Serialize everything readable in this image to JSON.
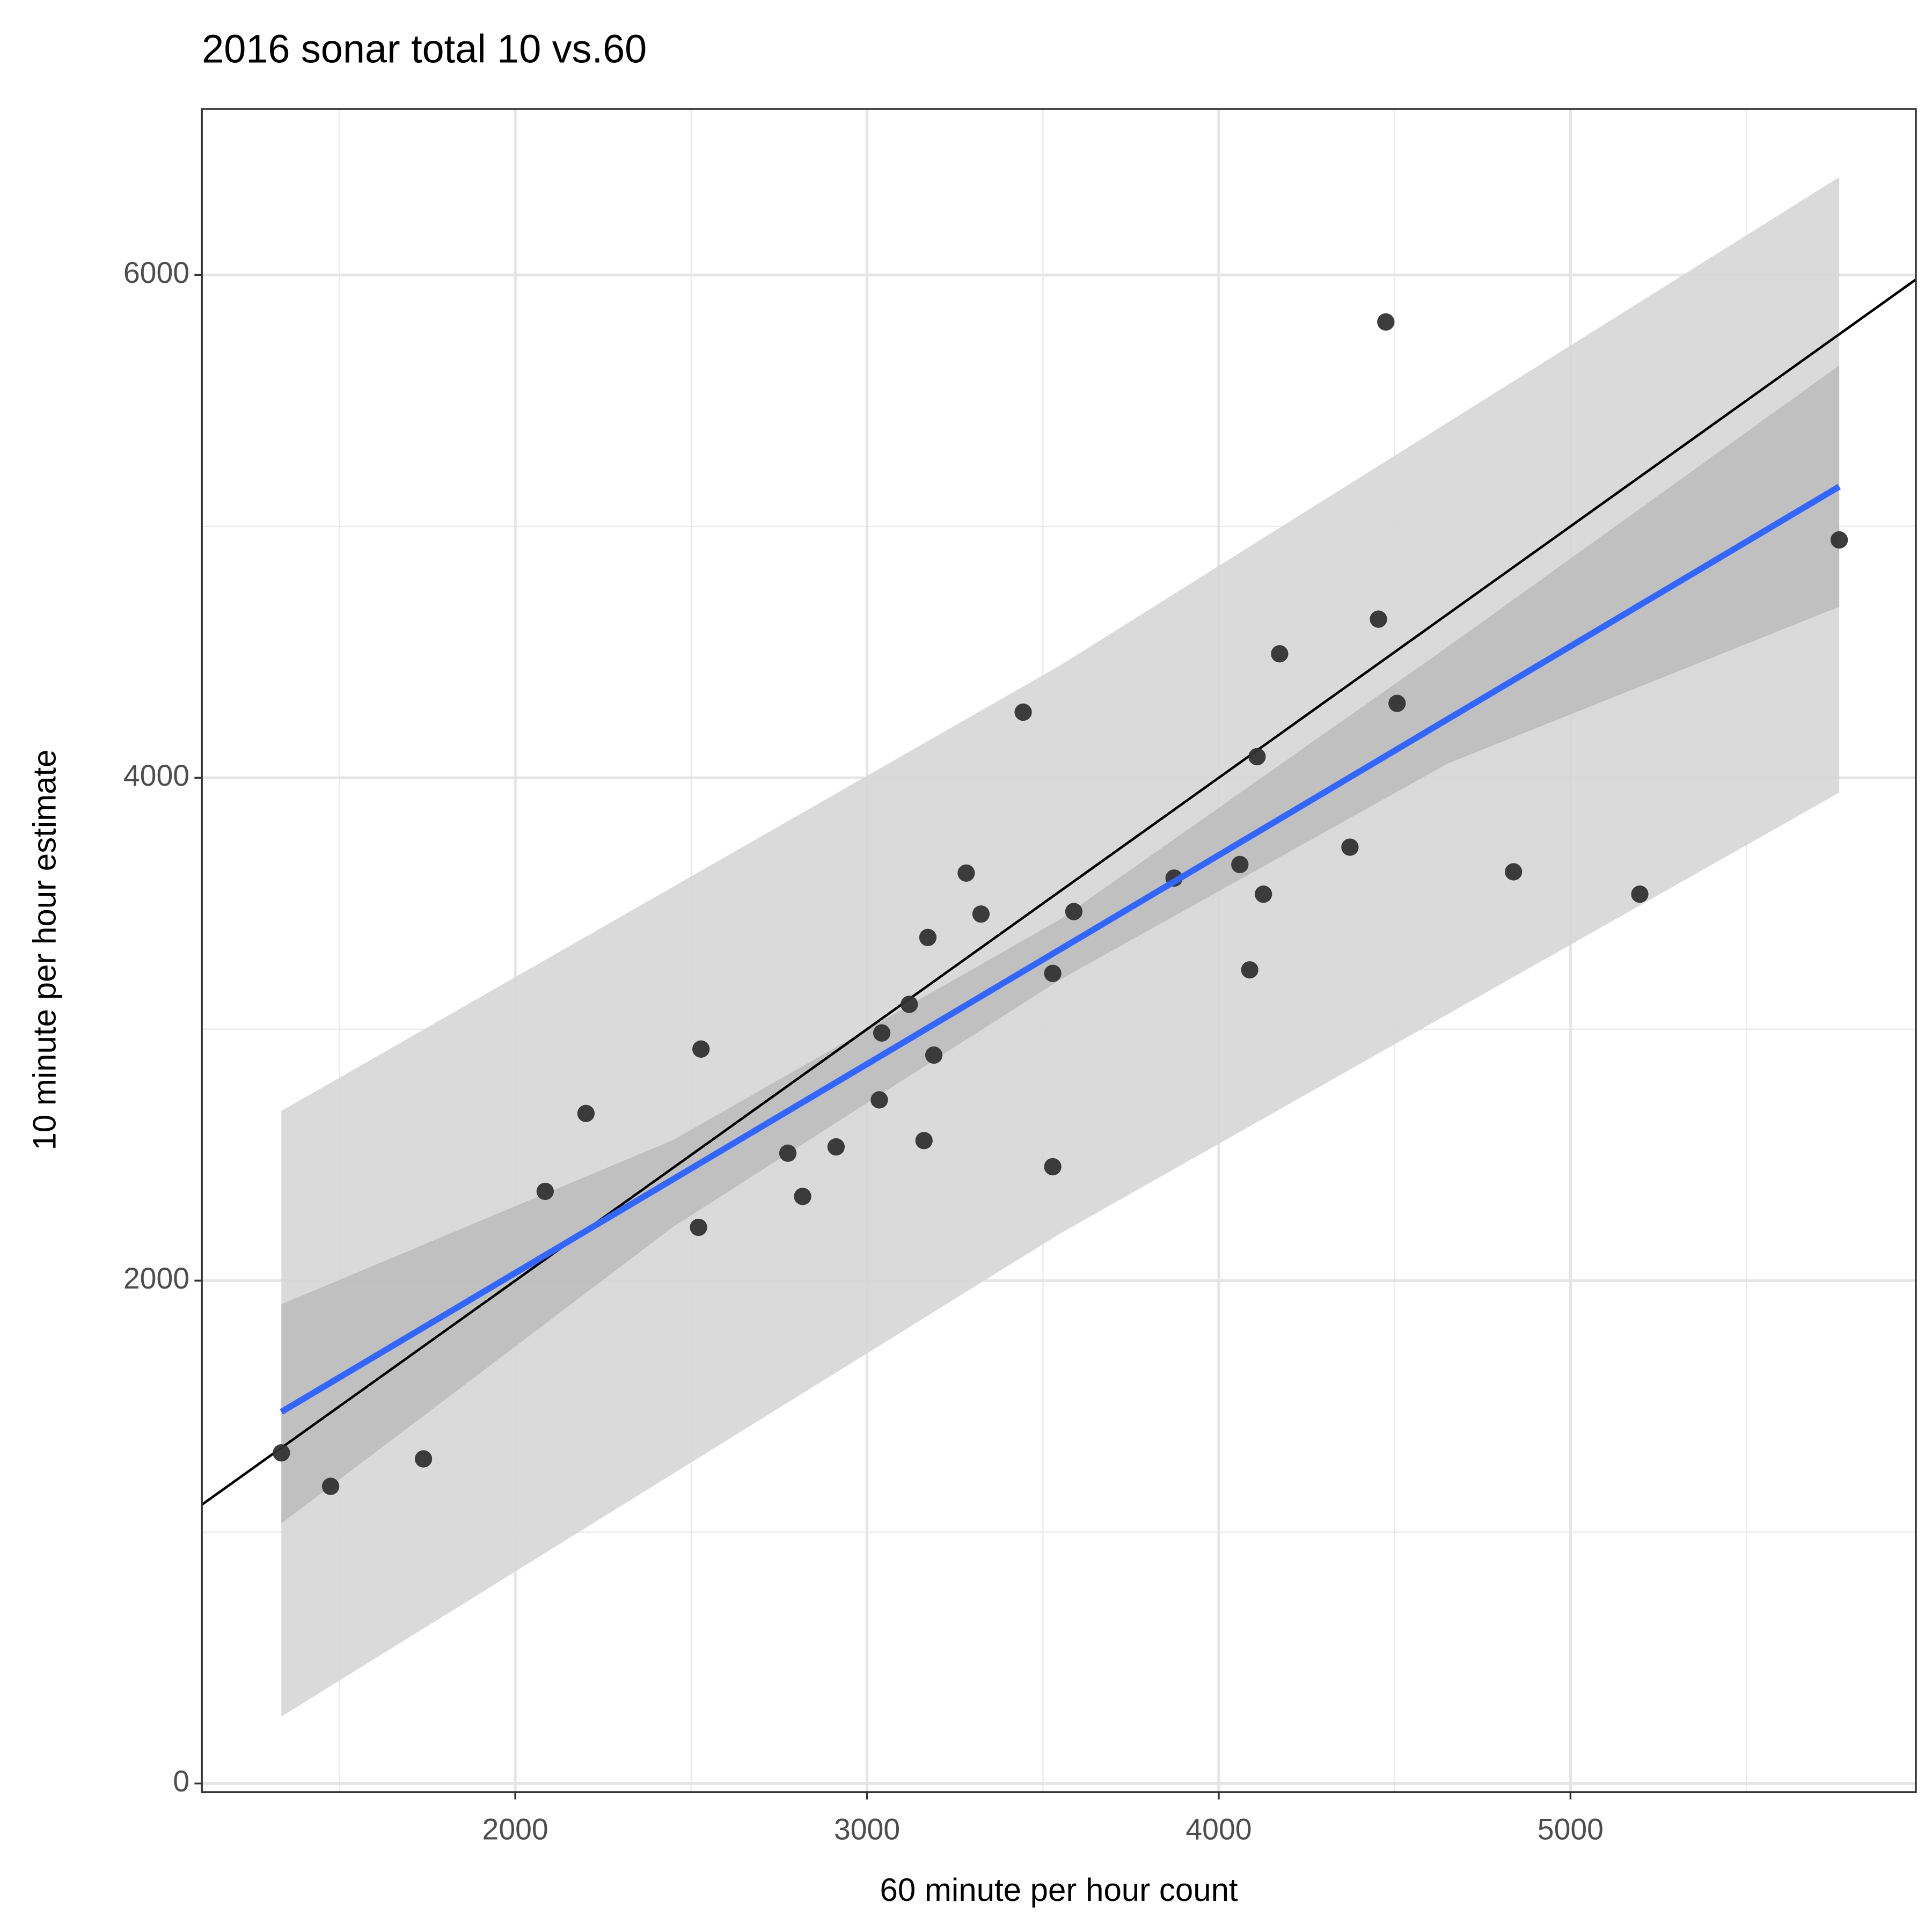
{
  "chart_data": {
    "type": "scatter",
    "title": "2016 sonar total 10 vs.60",
    "xlabel": "60 minute per hour count",
    "ylabel": "10 minute per hour estimate",
    "xlim": [
      1109,
      5982
    ],
    "ylim": [
      -34,
      6660
    ],
    "xticks": [
      2000,
      3000,
      4000,
      5000
    ],
    "yticks": [
      0,
      2000,
      4000,
      6000
    ],
    "minor_xticks": [
      1500,
      2500,
      3500,
      4500,
      5500
    ],
    "minor_yticks": [
      1000,
      3000,
      5000
    ],
    "grid": true,
    "series": [
      {
        "color": "#333333",
        "x": [
          1335,
          1475,
          1739,
          2085,
          2201,
          2521,
          2528,
          2775,
          2817,
          2912,
          3042,
          3035,
          3120,
          3162,
          3173,
          3190,
          3282,
          3324,
          3444,
          3528,
          3528,
          3588,
          3873,
          4060,
          4088,
          4109,
          4127,
          4173,
          4373,
          4454,
          4475,
          4507,
          4838,
          5197,
          5764
        ],
        "values": [
          1315,
          1182,
          1291,
          2355,
          2665,
          2212,
          2921,
          2507,
          2335,
          2532,
          2985,
          2719,
          3099,
          2557,
          3365,
          2897,
          3621,
          3458,
          4261,
          3222,
          2453,
          3468,
          3601,
          3655,
          3236,
          4084,
          3537,
          4493,
          3724,
          4631,
          5813,
          4296,
          3626,
          3537,
          4946
        ]
      }
    ],
    "prediction_band": {
      "color": "#d6d6d6",
      "x": [
        1335,
        3550,
        5764
      ],
      "lower": [
        266,
        2188,
        3941
      ],
      "upper": [
        2675,
        4448,
        6389
      ]
    },
    "confidence_band": {
      "color": "#bdbdbd",
      "x": [
        1335,
        2450,
        3550,
        4650,
        5764
      ],
      "lower": [
        1034,
        2215,
        3198,
        4056,
        4680
      ],
      "upper": [
        1906,
        2560,
        3438,
        4520,
        5640
      ]
    },
    "fit_line": {
      "color": "#3366ff",
      "x": [
        1335,
        5764
      ],
      "values": [
        1478,
        5158
      ]
    },
    "reference_line": {
      "color": "#000000",
      "x": [
        1109,
        5982
      ],
      "values": [
        1109,
        5982
      ]
    }
  }
}
